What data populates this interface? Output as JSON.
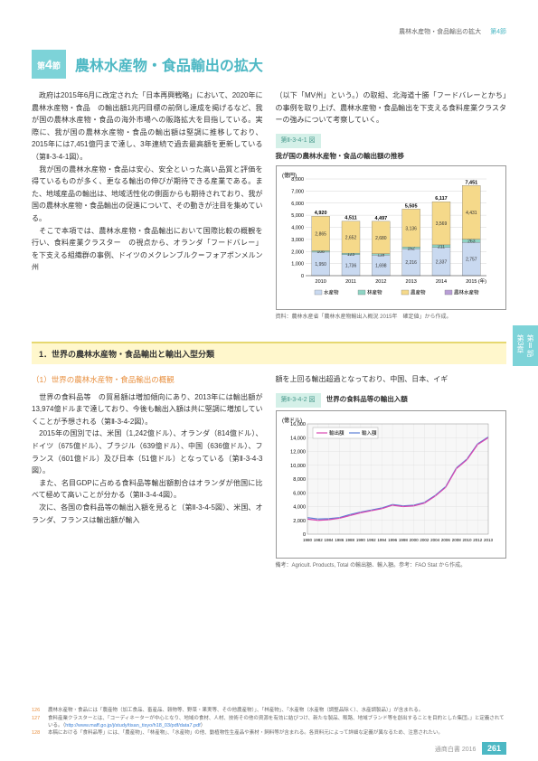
{
  "header": {
    "breadcrumb": "農林水産物・食品輸出の拡大",
    "chapter": "第4節"
  },
  "section_badge": {
    "prefix": "第",
    "num": "4",
    "suffix": "節"
  },
  "title": "農林水産物・食品輸出の拡大",
  "body": {
    "left_p1": "　政府は2015年6月に改定された「日本再興戦略」において、2020年に農林水産物・食品　の輸出額1兆円目標の前倒し達成を掲げるなど、我が国の農林水産物・食品の海外市場への販路拡大を目指している。実際に、我が国の農林水産物・食品の輸出額は堅調に推移しており、2015年には7,451億円まで達し、3年連続で過去最高額を更新している（第Ⅱ-3-4-1図）。",
    "left_p2": "　我が国の農林水産物・食品は安心、安全といった高い品質と評価を得ているものが多く、更なる輸出の伸びが期待できる産業である。また、地域産品の輸出は、地域活性化の側面からも期待されており、我が国の農林水産物・食品輸出の促進について、その動きが注目を集めている。",
    "left_p3": "　そこで本項では、農林水産物・食品輸出において国際比較の概観を行い、食料産業クラスター　の視点から、オランダ「フードバレー」を下支える組織群の事例、ドイツのメクレンブルク＝フォアポンメルン州",
    "right_p1": "（以下「MV州」という。）の取組、北海道十勝「フードバレーとかち」の事例を取り上げ、農林水産物・食品輸出を下支える食料産業クラスターの強みについて考察していく。"
  },
  "fig1": {
    "label": "第Ⅱ-3-4-1 図",
    "title": "我が国の農林水産物・食品の輸出額の推移",
    "y_unit": "(億円)",
    "y_max": 8000,
    "y_ticks": [
      0,
      1000,
      2000,
      3000,
      4000,
      5000,
      6000,
      7000,
      8000
    ],
    "years": [
      "2010",
      "2011",
      "2012",
      "2013",
      "2014",
      "2015"
    ],
    "totals": [
      4920,
      4511,
      4497,
      5505,
      6117,
      7451
    ],
    "series": [
      {
        "name": "水産物",
        "color": "#c9d9f0",
        "values": [
          1950,
          1736,
          1698,
          2216,
          2337,
          2757
        ]
      },
      {
        "name": "林産物",
        "color": "#8fd4c4",
        "values": [
          106,
          123,
          118,
          152,
          211,
          263
        ]
      },
      {
        "name": "農産物",
        "color": "#f5d98a",
        "values": [
          2865,
          2652,
          2680,
          3136,
          3569,
          4431
        ]
      }
    ],
    "legend": [
      "水産物",
      "林産物",
      "農産物",
      "農林水産物"
    ],
    "legend_colors": [
      "#c9d9f0",
      "#8fd4c4",
      "#f5d98a",
      "#b89ed6"
    ],
    "source": "資料：農林水産省「農林水産物輸出入概況 2015年　確定値」から作成。",
    "x_label": "(年)"
  },
  "section2": {
    "heading": "1．世界の農林水産物・食品輸出と輸出入型分類"
  },
  "sub": {
    "heading": "（1）世界の農林水産物・食品輸出の概観",
    "p1": "　世界の食料品等　の貿易額は増加傾向にあり、2013年には輸出額が13,974億ドルまで達しており、今後も輸出入額は共に堅調に増加していくことが予想される（第Ⅱ-3-4-2図）。",
    "p2": "　2015年の国別では、米国（1,242億ドル）、オランダ（814億ドル）、ドイツ（675億ドル）、ブラジル（639億ドル）、中国（636億ドル）、フランス（601億ドル）及び日本（51億ドル）となっている（第Ⅱ-3-4-3図）。",
    "p3": "　また、名目GDPに占める食料品等輸出額割合はオランダが他国に比べて極めて高いことが分かる（第Ⅱ-3-4-4図）。",
    "p4": "　次に、各国の食料品等の輸出入額を見ると（第Ⅱ-3-4-5図）、米国、オランダ、フランスは輸出額が輸入",
    "right_p": "額を上回る輸出超過となっており、中国、日本、イギ"
  },
  "fig2": {
    "label": "第Ⅱ-3-4-2 図",
    "title": "世界の食料品等の輸出入額",
    "y_unit": "(億ドル)",
    "y_max": 16000,
    "y_ticks": [
      0,
      2000,
      4000,
      6000,
      8000,
      10000,
      12000,
      14000,
      16000
    ],
    "years": [
      "1980",
      "1982",
      "1984",
      "1986",
      "1988",
      "1990",
      "1992",
      "1994",
      "1996",
      "1998",
      "2000",
      "2002",
      "2004",
      "2006",
      "2008",
      "2010",
      "2012",
      "2013"
    ],
    "export": {
      "name": "輸出額",
      "color": "#d946b0",
      "values": [
        2200,
        2000,
        2100,
        2300,
        2700,
        3100,
        3400,
        3700,
        4200,
        4000,
        4100,
        4500,
        5500,
        6800,
        9500,
        10800,
        13000,
        14000
      ]
    },
    "import": {
      "name": "輸入額",
      "color": "#5b7fd4",
      "values": [
        2400,
        2200,
        2250,
        2400,
        2850,
        3200,
        3500,
        3800,
        4300,
        4100,
        4200,
        4600,
        5600,
        6900,
        9600,
        10900,
        13100,
        14100
      ]
    },
    "source": "備考：Agricult. Products, Total の輸出額、輸入額。参考：FAO Stat から作成。"
  },
  "notes": [
    {
      "num": "126",
      "text": "農林水産物・食品には「農産物（加工食品、畜産品、穀物等、野菜・果実等、その他農産物）」、「林産物」、「水産物（水産物（調整品除く）、水産調製品）」が含まれる。"
    },
    {
      "num": "127",
      "text": "食料産業クラスターとは、「コーディネーターが中心となり、地域の食材、人材、技術その他の資源を有効に結びつけ、新たな製品、販路、地域ブランド等を創出することを目的とした集団。」と定義されている。（http://www.maff.go.jp/j/study/tisan_tisyo/h18_03/pdf/data7.pdf）"
    },
    {
      "num": "128",
      "text": "本稿における「食料品等」には、「農産物」、「林産物」、「水産物」の他、動植物性生産品や素材・飼料等が含まれる。各資料元によって詳細な定義が異なるため、注意されたい。"
    }
  ],
  "side": {
    "part": "第Ⅱ部",
    "chap": "第3章"
  },
  "page": {
    "label": "通商白書 2016",
    "num": "261"
  }
}
